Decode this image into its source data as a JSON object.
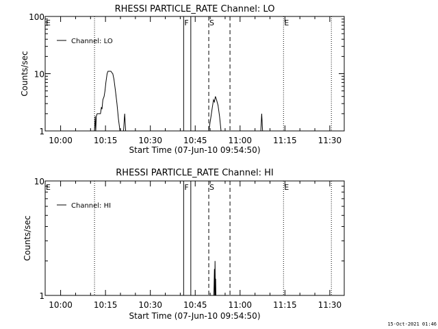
{
  "chart_data": [
    {
      "type": "line",
      "title": "RHESSI PARTICLE_RATE Channel: LO",
      "xlabel": "Start Time (07-Jun-10 09:54:50)",
      "ylabel": "Counts/sec",
      "x_units": "minutes after 09:54:50",
      "xlim": [
        0,
        100
      ],
      "ylim": [
        1,
        100
      ],
      "yscale": "log",
      "ytick_labels": [
        "1",
        "10",
        "100"
      ],
      "ytick_values": [
        1,
        10,
        100
      ],
      "xtick_labels": [
        "10:00",
        "10:15",
        "10:30",
        "10:45",
        "11:00",
        "11:15",
        "11:30"
      ],
      "xtick_values": [
        5.17,
        20.17,
        35.17,
        50.17,
        65.17,
        80.17,
        95.17
      ],
      "legend": {
        "label": "Channel: LO",
        "placement": "top-left"
      },
      "series": [
        {
          "name": "Channel: LO",
          "points": [
            [
              0,
              1
            ],
            [
              16.5,
              1
            ],
            [
              16.7,
              1.8
            ],
            [
              16.9,
              1
            ],
            [
              17.1,
              1.8
            ],
            [
              17.4,
              2
            ],
            [
              18.5,
              2
            ],
            [
              18.8,
              2.6
            ],
            [
              19.0,
              2.4
            ],
            [
              19.3,
              3.5
            ],
            [
              19.7,
              4
            ],
            [
              20.0,
              5
            ],
            [
              20.3,
              7
            ],
            [
              20.7,
              10
            ],
            [
              21.0,
              11
            ],
            [
              22.0,
              11
            ],
            [
              22.3,
              10.4
            ],
            [
              22.6,
              10
            ],
            [
              23.0,
              8
            ],
            [
              23.5,
              5
            ],
            [
              24.0,
              3
            ],
            [
              24.5,
              1.6
            ],
            [
              25.0,
              1
            ],
            [
              26.2,
              1
            ],
            [
              26.6,
              2
            ],
            [
              26.9,
              1
            ],
            [
              54.7,
              1
            ],
            [
              55.3,
              1.6
            ],
            [
              55.9,
              2.6
            ],
            [
              56.3,
              3.5
            ],
            [
              56.6,
              3.2
            ],
            [
              56.9,
              4
            ],
            [
              57.3,
              3.5
            ],
            [
              57.8,
              2.8
            ],
            [
              58.3,
              1.8
            ],
            [
              58.8,
              1
            ],
            [
              72.1,
              1
            ],
            [
              72.4,
              2
            ],
            [
              72.7,
              1
            ],
            [
              100,
              1
            ]
          ]
        }
      ],
      "annotations": [
        {
          "label": "E",
          "x": 0,
          "style": "none"
        },
        {
          "label": "",
          "x": 16.5,
          "style": "dotted"
        },
        {
          "label": "F",
          "x": 46.3,
          "style": "solid"
        },
        {
          "label": "",
          "x": 48.7,
          "style": "solid"
        },
        {
          "label": "S",
          "x": 54.7,
          "style": "dashed"
        },
        {
          "label": "",
          "x": 61.8,
          "style": "dashed"
        },
        {
          "label": "E",
          "x": 79.7,
          "style": "dotted"
        },
        {
          "label": "",
          "x": 95.7,
          "style": "dotted"
        }
      ]
    },
    {
      "type": "line",
      "title": "RHESSI PARTICLE_RATE Channel: HI",
      "xlabel": "Start Time (07-Jun-10 09:54:50)",
      "ylabel": "Counts/sec",
      "x_units": "minutes after 09:54:50",
      "xlim": [
        0,
        100
      ],
      "ylim": [
        1,
        10
      ],
      "yscale": "log",
      "ytick_labels": [
        "1",
        "10"
      ],
      "ytick_values": [
        1,
        10
      ],
      "xtick_labels": [
        "10:00",
        "10:15",
        "10:30",
        "10:45",
        "11:00",
        "11:15",
        "11:30"
      ],
      "xtick_values": [
        5.17,
        20.17,
        35.17,
        50.17,
        65.17,
        80.17,
        95.17
      ],
      "legend": {
        "label": "Channel: HI",
        "placement": "top-left"
      },
      "series": [
        {
          "name": "Channel: HI",
          "points": [
            [
              0,
              1
            ],
            [
              56.4,
              1
            ],
            [
              56.6,
              1.7
            ],
            [
              56.7,
              1
            ],
            [
              56.8,
              2
            ],
            [
              56.9,
              1
            ],
            [
              57.0,
              1.4
            ],
            [
              57.1,
              1
            ],
            [
              100,
              1
            ]
          ]
        }
      ],
      "annotations": [
        {
          "label": "E",
          "x": 0,
          "style": "none"
        },
        {
          "label": "",
          "x": 16.5,
          "style": "dotted"
        },
        {
          "label": "F",
          "x": 46.3,
          "style": "solid"
        },
        {
          "label": "",
          "x": 48.7,
          "style": "solid"
        },
        {
          "label": "S",
          "x": 54.7,
          "style": "dashed"
        },
        {
          "label": "",
          "x": 61.8,
          "style": "dashed"
        },
        {
          "label": "E",
          "x": 79.7,
          "style": "dotted"
        },
        {
          "label": "",
          "x": 95.7,
          "style": "dotted"
        }
      ]
    }
  ],
  "footer": {
    "timestamp": "15-Oct-2021 01:46"
  }
}
